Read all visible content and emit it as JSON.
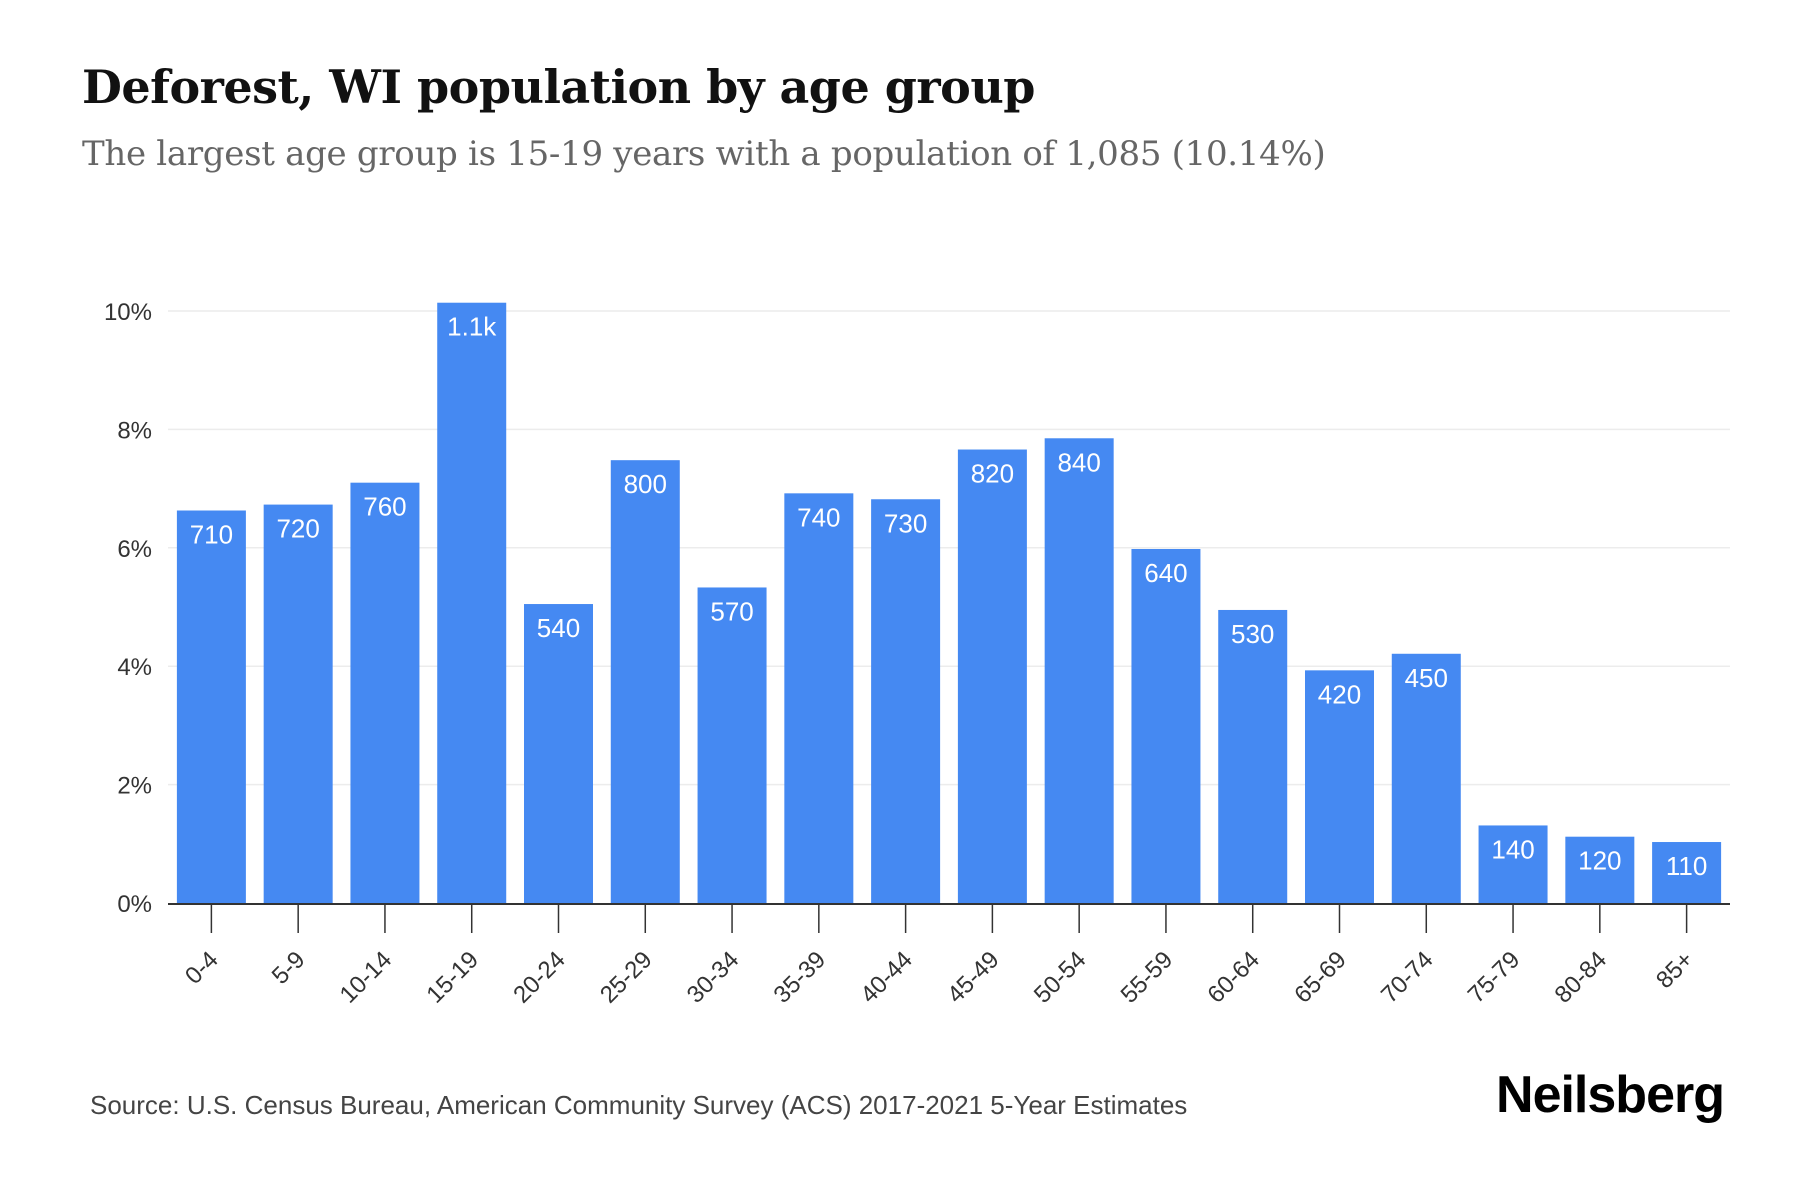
{
  "title": "Deforest, WI population by age group",
  "subtitle": "The largest age group is 15-19 years with a population of 1,085 (10.14%)",
  "source": "Source: U.S. Census Bureau, American Community Survey (ACS) 2017-2021 5-Year Estimates",
  "brand": "Neilsberg",
  "colors": {
    "bar": "#4589f2",
    "grid": "#ececec",
    "axis": "#333333",
    "bar_label": "#ffffff"
  },
  "chart_data": {
    "type": "bar",
    "title": "Deforest, WI population by age group",
    "subtitle": "The largest age group is 15-19 years with a population of 1,085 (10.14%)",
    "categories": [
      "0-4",
      "5-9",
      "10-14",
      "15-19",
      "20-24",
      "25-29",
      "30-34",
      "35-39",
      "40-44",
      "45-49",
      "50-54",
      "55-59",
      "60-64",
      "65-69",
      "70-74",
      "75-79",
      "80-84",
      "85+"
    ],
    "values_percent": [
      6.63,
      6.73,
      7.1,
      10.14,
      5.05,
      7.48,
      5.33,
      6.92,
      6.82,
      7.66,
      7.85,
      5.98,
      4.95,
      3.93,
      4.21,
      1.31,
      1.12,
      1.03
    ],
    "labels": [
      "710",
      "720",
      "760",
      "1.1k",
      "540",
      "800",
      "570",
      "740",
      "730",
      "820",
      "840",
      "640",
      "530",
      "420",
      "450",
      "140",
      "120",
      "110"
    ],
    "yticks": [
      "0%",
      "2%",
      "4%",
      "6%",
      "8%",
      "10%"
    ],
    "ylim": [
      0,
      10
    ],
    "grid": true
  }
}
